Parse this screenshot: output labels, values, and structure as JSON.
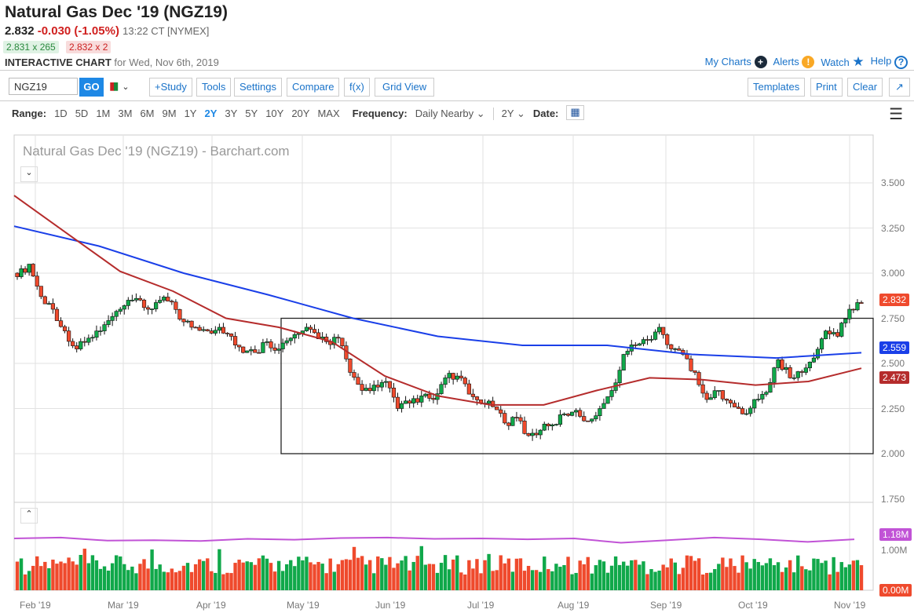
{
  "header": {
    "title": "Natural Gas Dec '19 (NGZ19)",
    "last": "2.832",
    "change": "-0.030 (-1.05%)",
    "time": "13:22 CT [NYMEX]",
    "bid": "2.831 x 265",
    "ask": "2.832 x 2",
    "chart_label": "INTERACTIVE CHART",
    "chart_date": "for Wed, Nov 6th, 2019"
  },
  "links": {
    "my_charts": "My Charts",
    "alerts": "Alerts",
    "watch": "Watch",
    "help": "Help"
  },
  "toolbar": {
    "symbol": "NGZ19",
    "go": "GO",
    "study": "+Study",
    "tools": "Tools",
    "settings": "Settings",
    "compare": "Compare",
    "fx": "f(x)",
    "grid": "Grid View",
    "templates": "Templates",
    "print": "Print",
    "clear": "Clear"
  },
  "range": {
    "label": "Range:",
    "options": [
      "1D",
      "5D",
      "1M",
      "3M",
      "6M",
      "9M",
      "1Y",
      "2Y",
      "3Y",
      "5Y",
      "10Y",
      "20Y",
      "MAX"
    ],
    "active": "2Y",
    "freq_label": "Frequency:",
    "freq": "Daily Nearby",
    "period": "2Y",
    "date_label": "Date:"
  },
  "colors": {
    "up": "#10a84a",
    "down": "#ef4a2d",
    "ma200": "#1a3fe8",
    "ma50": "#b52c2c",
    "vol_ma": "#c153d6",
    "accent": "#1e88e5"
  },
  "chart_data": {
    "type": "candlestick",
    "title": "Natural Gas Dec '19 (NGZ19) - Barchart.com",
    "y_ticks": [
      "3.500",
      "3.250",
      "3.000",
      "2.750",
      "2.500",
      "2.250",
      "2.000",
      "1.750"
    ],
    "ylim": [
      1.75,
      3.6
    ],
    "x_ticks": [
      "Feb '19",
      "Mar '19",
      "Apr '19",
      "May '19",
      "Jun '19",
      "Jul '19",
      "Aug '19",
      "Sep '19",
      "Oct '19",
      "Nov '19"
    ],
    "closes": [
      2.98,
      3.05,
      2.87,
      2.8,
      2.68,
      2.58,
      2.64,
      2.68,
      2.76,
      2.82,
      2.86,
      2.8,
      2.85,
      2.84,
      2.73,
      2.7,
      2.68,
      2.7,
      2.65,
      2.56,
      2.56,
      2.62,
      2.58,
      2.64,
      2.68,
      2.67,
      2.62,
      2.64,
      2.45,
      2.35,
      2.38,
      2.4,
      2.25,
      2.28,
      2.32,
      2.3,
      2.42,
      2.43,
      2.33,
      2.28,
      2.26,
      2.17,
      2.2,
      2.1,
      2.13,
      2.16,
      2.22,
      2.24,
      2.18,
      2.25,
      2.35,
      2.55,
      2.6,
      2.63,
      2.7,
      2.58,
      2.55,
      2.45,
      2.3,
      2.35,
      2.28,
      2.22,
      2.3,
      2.34,
      2.52,
      2.42,
      2.45,
      2.53,
      2.68,
      2.65,
      2.8,
      2.832
    ],
    "ma200": [
      3.26,
      3.15,
      3.0,
      2.88,
      2.75,
      2.65,
      2.6,
      2.6,
      2.55,
      2.53,
      2.559
    ],
    "ma50": [
      3.43,
      3.22,
      3.01,
      2.9,
      2.75,
      2.7,
      2.62,
      2.43,
      2.32,
      2.27,
      2.27,
      2.35,
      2.42,
      2.41,
      2.38,
      2.4,
      2.473
    ],
    "box": {
      "top": 2.75,
      "bottom": 2.0
    },
    "last_labels": {
      "price": "2.832",
      "ma200": "2.559",
      "ma50": "2.473"
    },
    "volume": {
      "ticks": [
        "1.00M"
      ],
      "ma_label": "1.18M",
      "zero_label": "0.00M",
      "ma": [
        1.2,
        1.22,
        1.15,
        1.16,
        1.14,
        1.19,
        1.17,
        1.21,
        1.22,
        1.19,
        1.2,
        1.18,
        1.2,
        1.1,
        1.16,
        1.22,
        1.18,
        1.12,
        1.18
      ]
    }
  }
}
